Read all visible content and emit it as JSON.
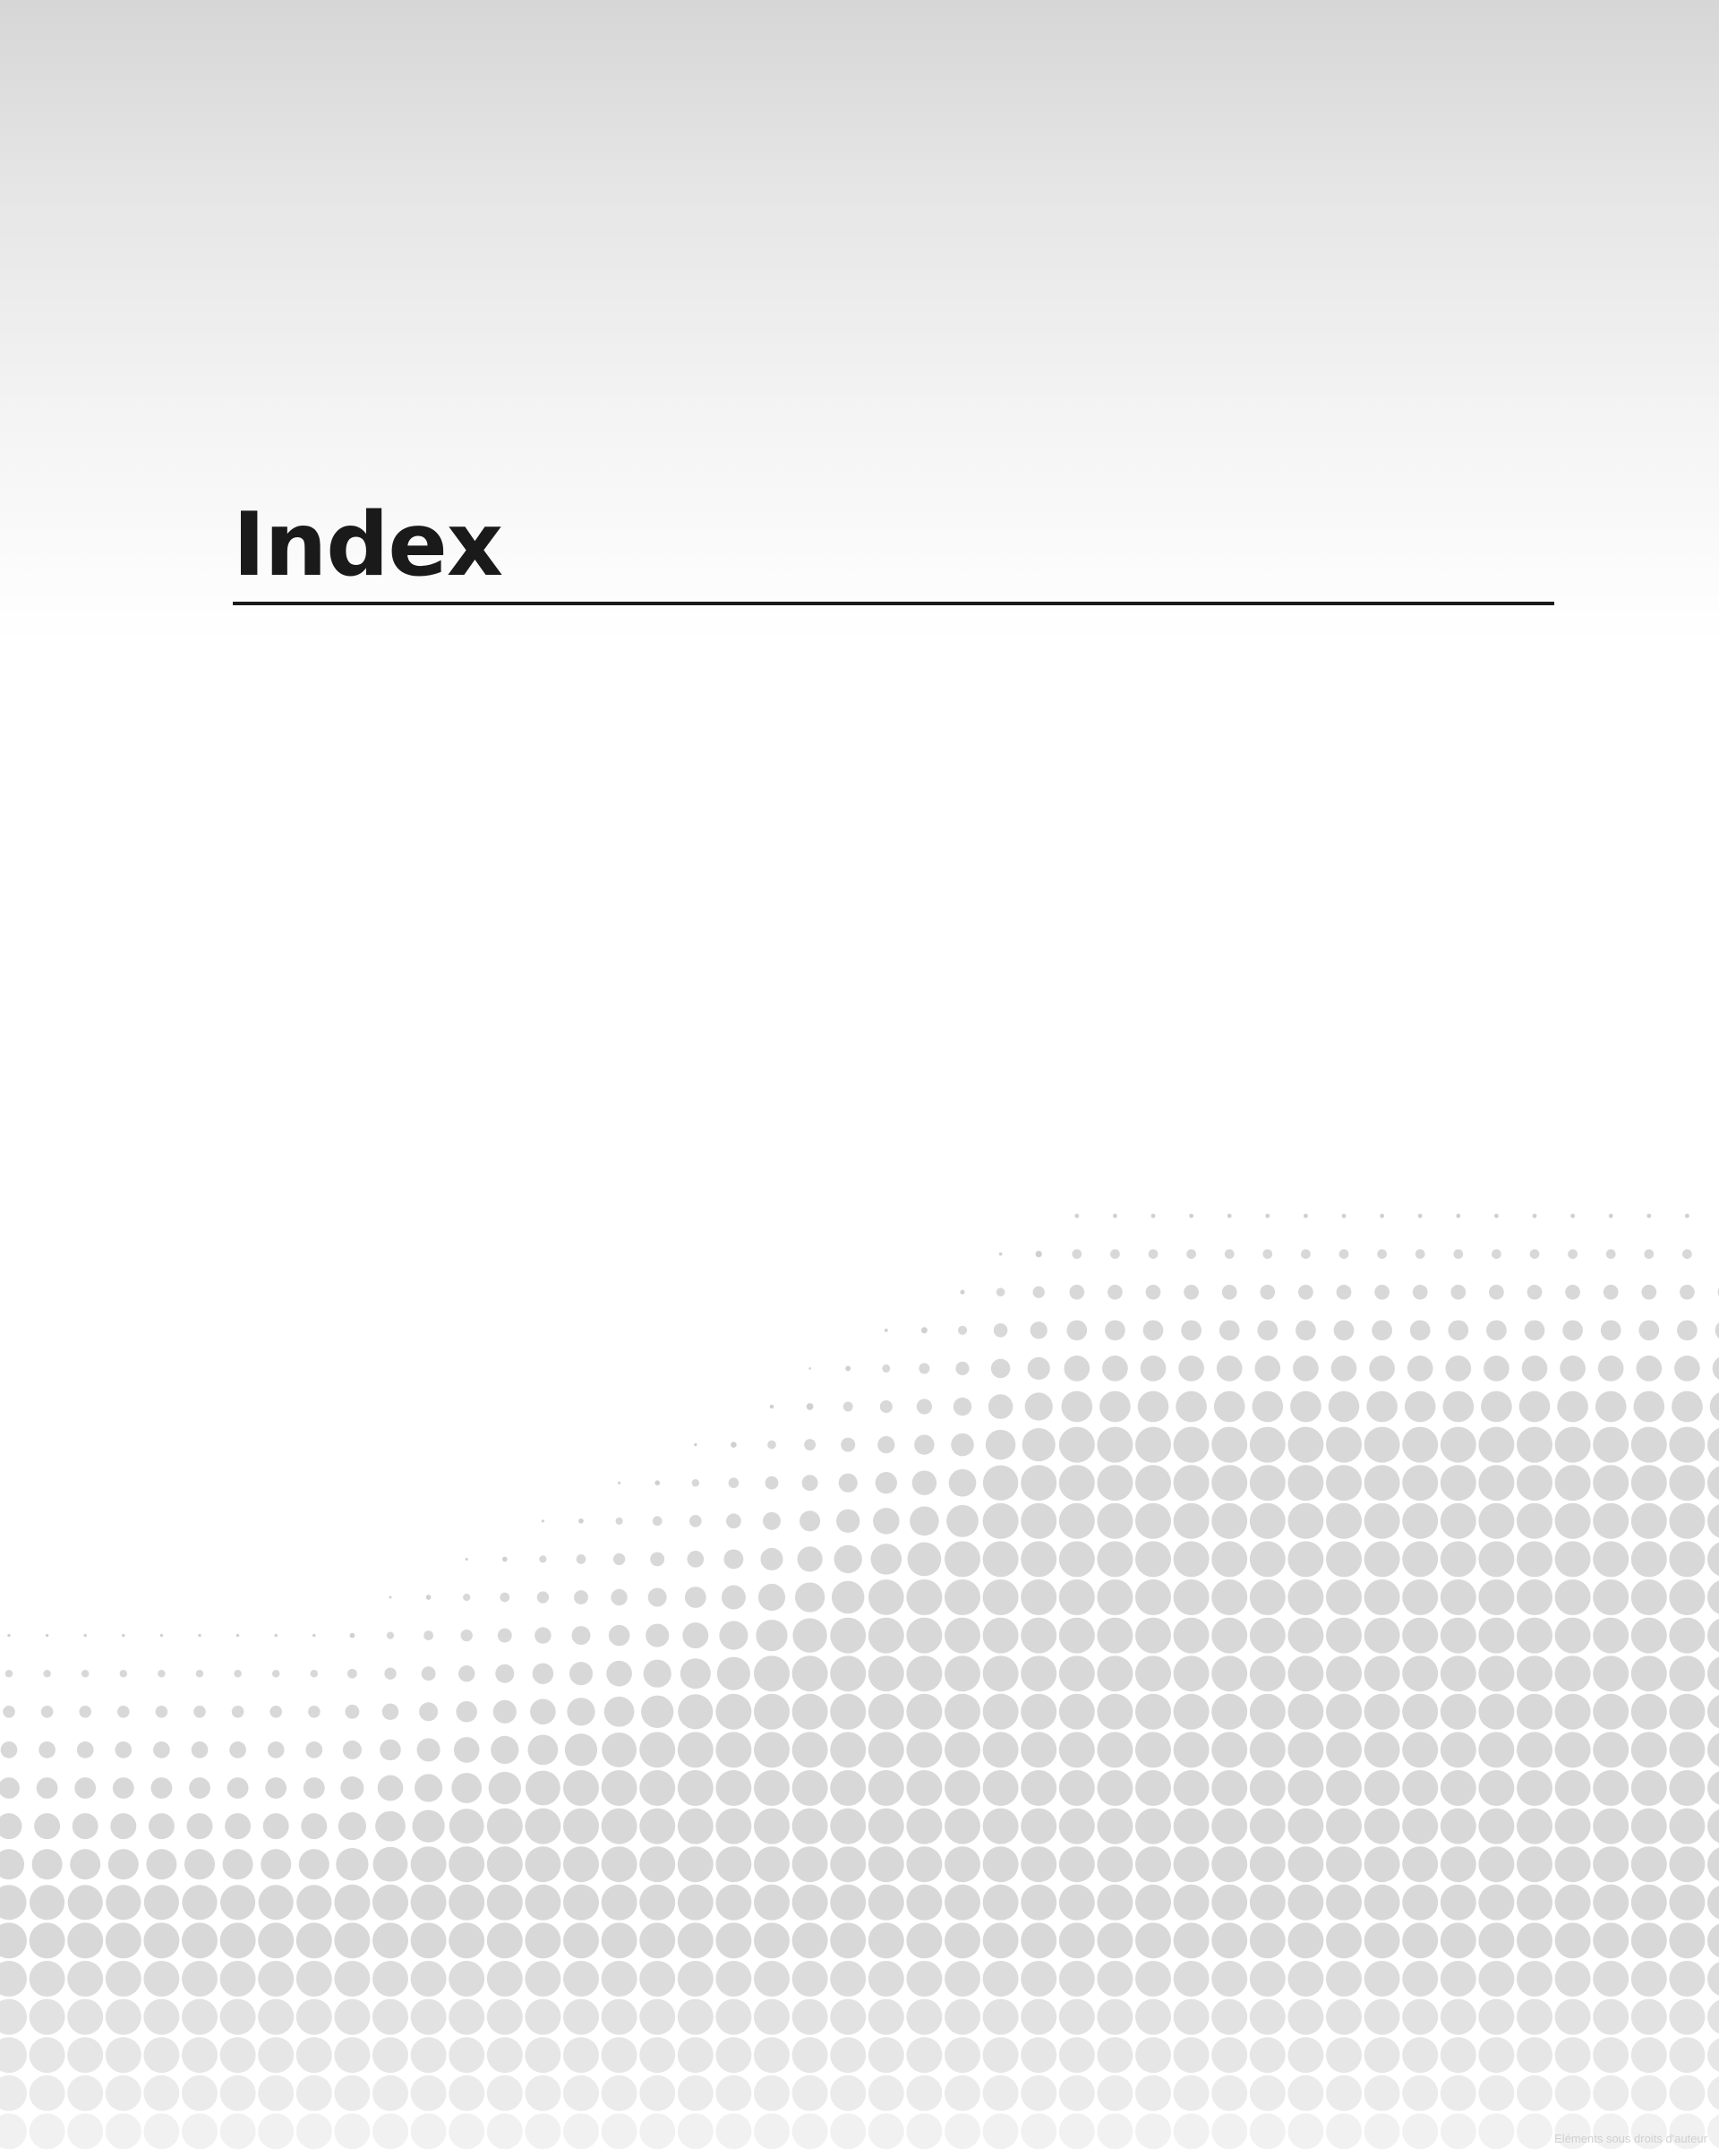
{
  "page": {
    "title": "Index",
    "watermark": "Eléments sous droits d'auteur"
  },
  "colors": {
    "title": "#1a1a1a",
    "rule": "#1a1a1a",
    "dots": "#d9d9d9",
    "gradient_top": "#d6d6d6"
  }
}
